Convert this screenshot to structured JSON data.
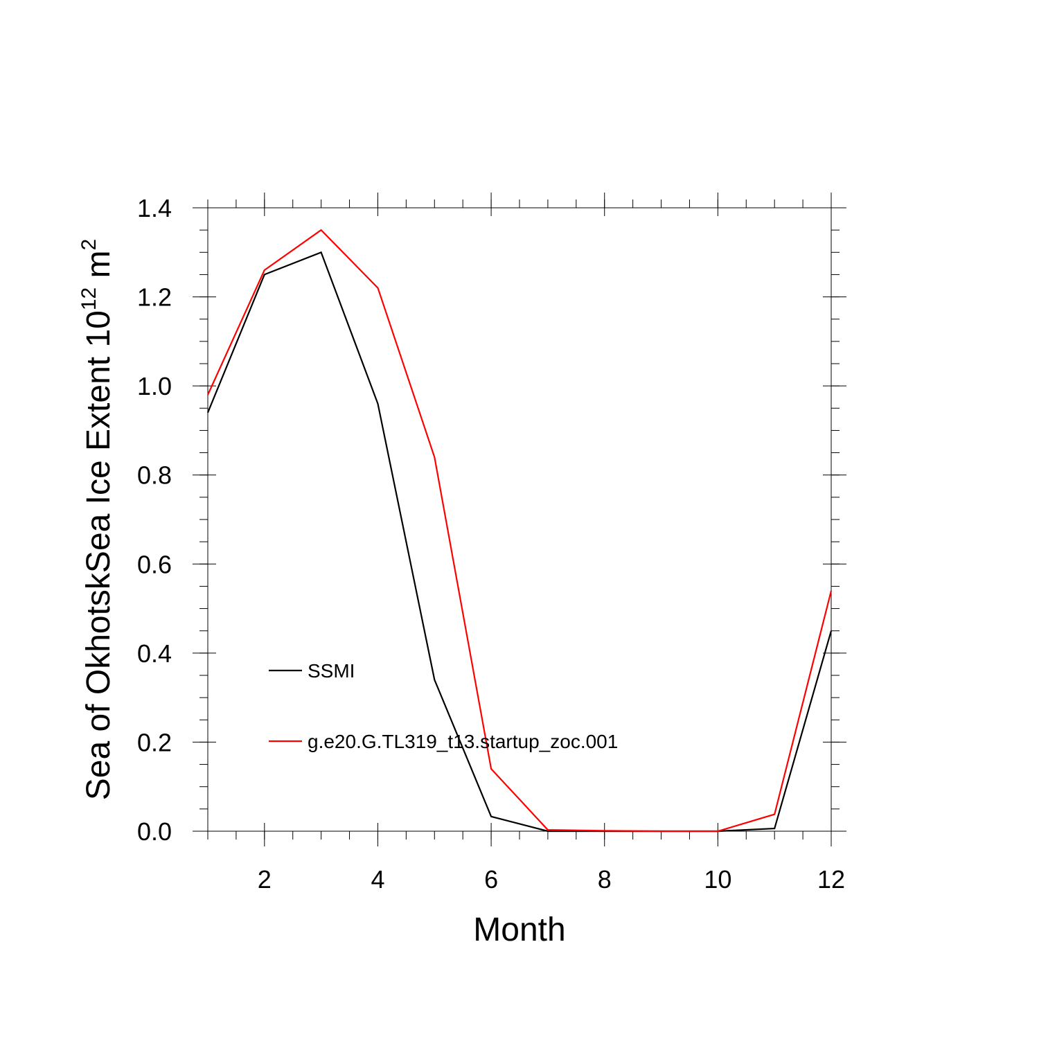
{
  "chart_data": {
    "type": "line",
    "xlabel": "Month",
    "ylabel": {
      "prefix": "Sea of OkhotskSea Ice Extent 10",
      "superscript": "12",
      "middle": " m",
      "superscript2": "2"
    },
    "xlim": [
      1,
      12
    ],
    "ylim": [
      0,
      1.4
    ],
    "x_ticks": [
      2,
      4,
      6,
      8,
      10,
      12
    ],
    "x_tick_labels": [
      "2",
      "4",
      "6",
      "8",
      "10",
      "12"
    ],
    "y_ticks": [
      0,
      0.2,
      0.4,
      0.6,
      0.8,
      1.0,
      1.2,
      1.4
    ],
    "y_tick_labels": [
      "0.0",
      "0.2",
      "0.4",
      "0.6",
      "0.8",
      "1.0",
      "1.2",
      "1.4"
    ],
    "x": [
      1,
      2,
      3,
      4,
      5,
      6,
      7,
      8,
      9,
      10,
      11,
      12
    ],
    "series": [
      {
        "name": "SSMI",
        "color": "#000000",
        "values": [
          0.94,
          1.25,
          1.3,
          0.96,
          0.34,
          0.033,
          0.0,
          0.0,
          0.0,
          0.0,
          0.006,
          0.45
        ]
      },
      {
        "name": "g.e20.G.TL319_t13.startup_zoc.001",
        "color": "#ff0000",
        "values": [
          0.98,
          1.26,
          1.35,
          1.22,
          0.84,
          0.14,
          0.003,
          0.001,
          0.0,
          0.0,
          0.038,
          0.54
        ]
      }
    ],
    "legend_position": "lower-left",
    "grid": false
  }
}
